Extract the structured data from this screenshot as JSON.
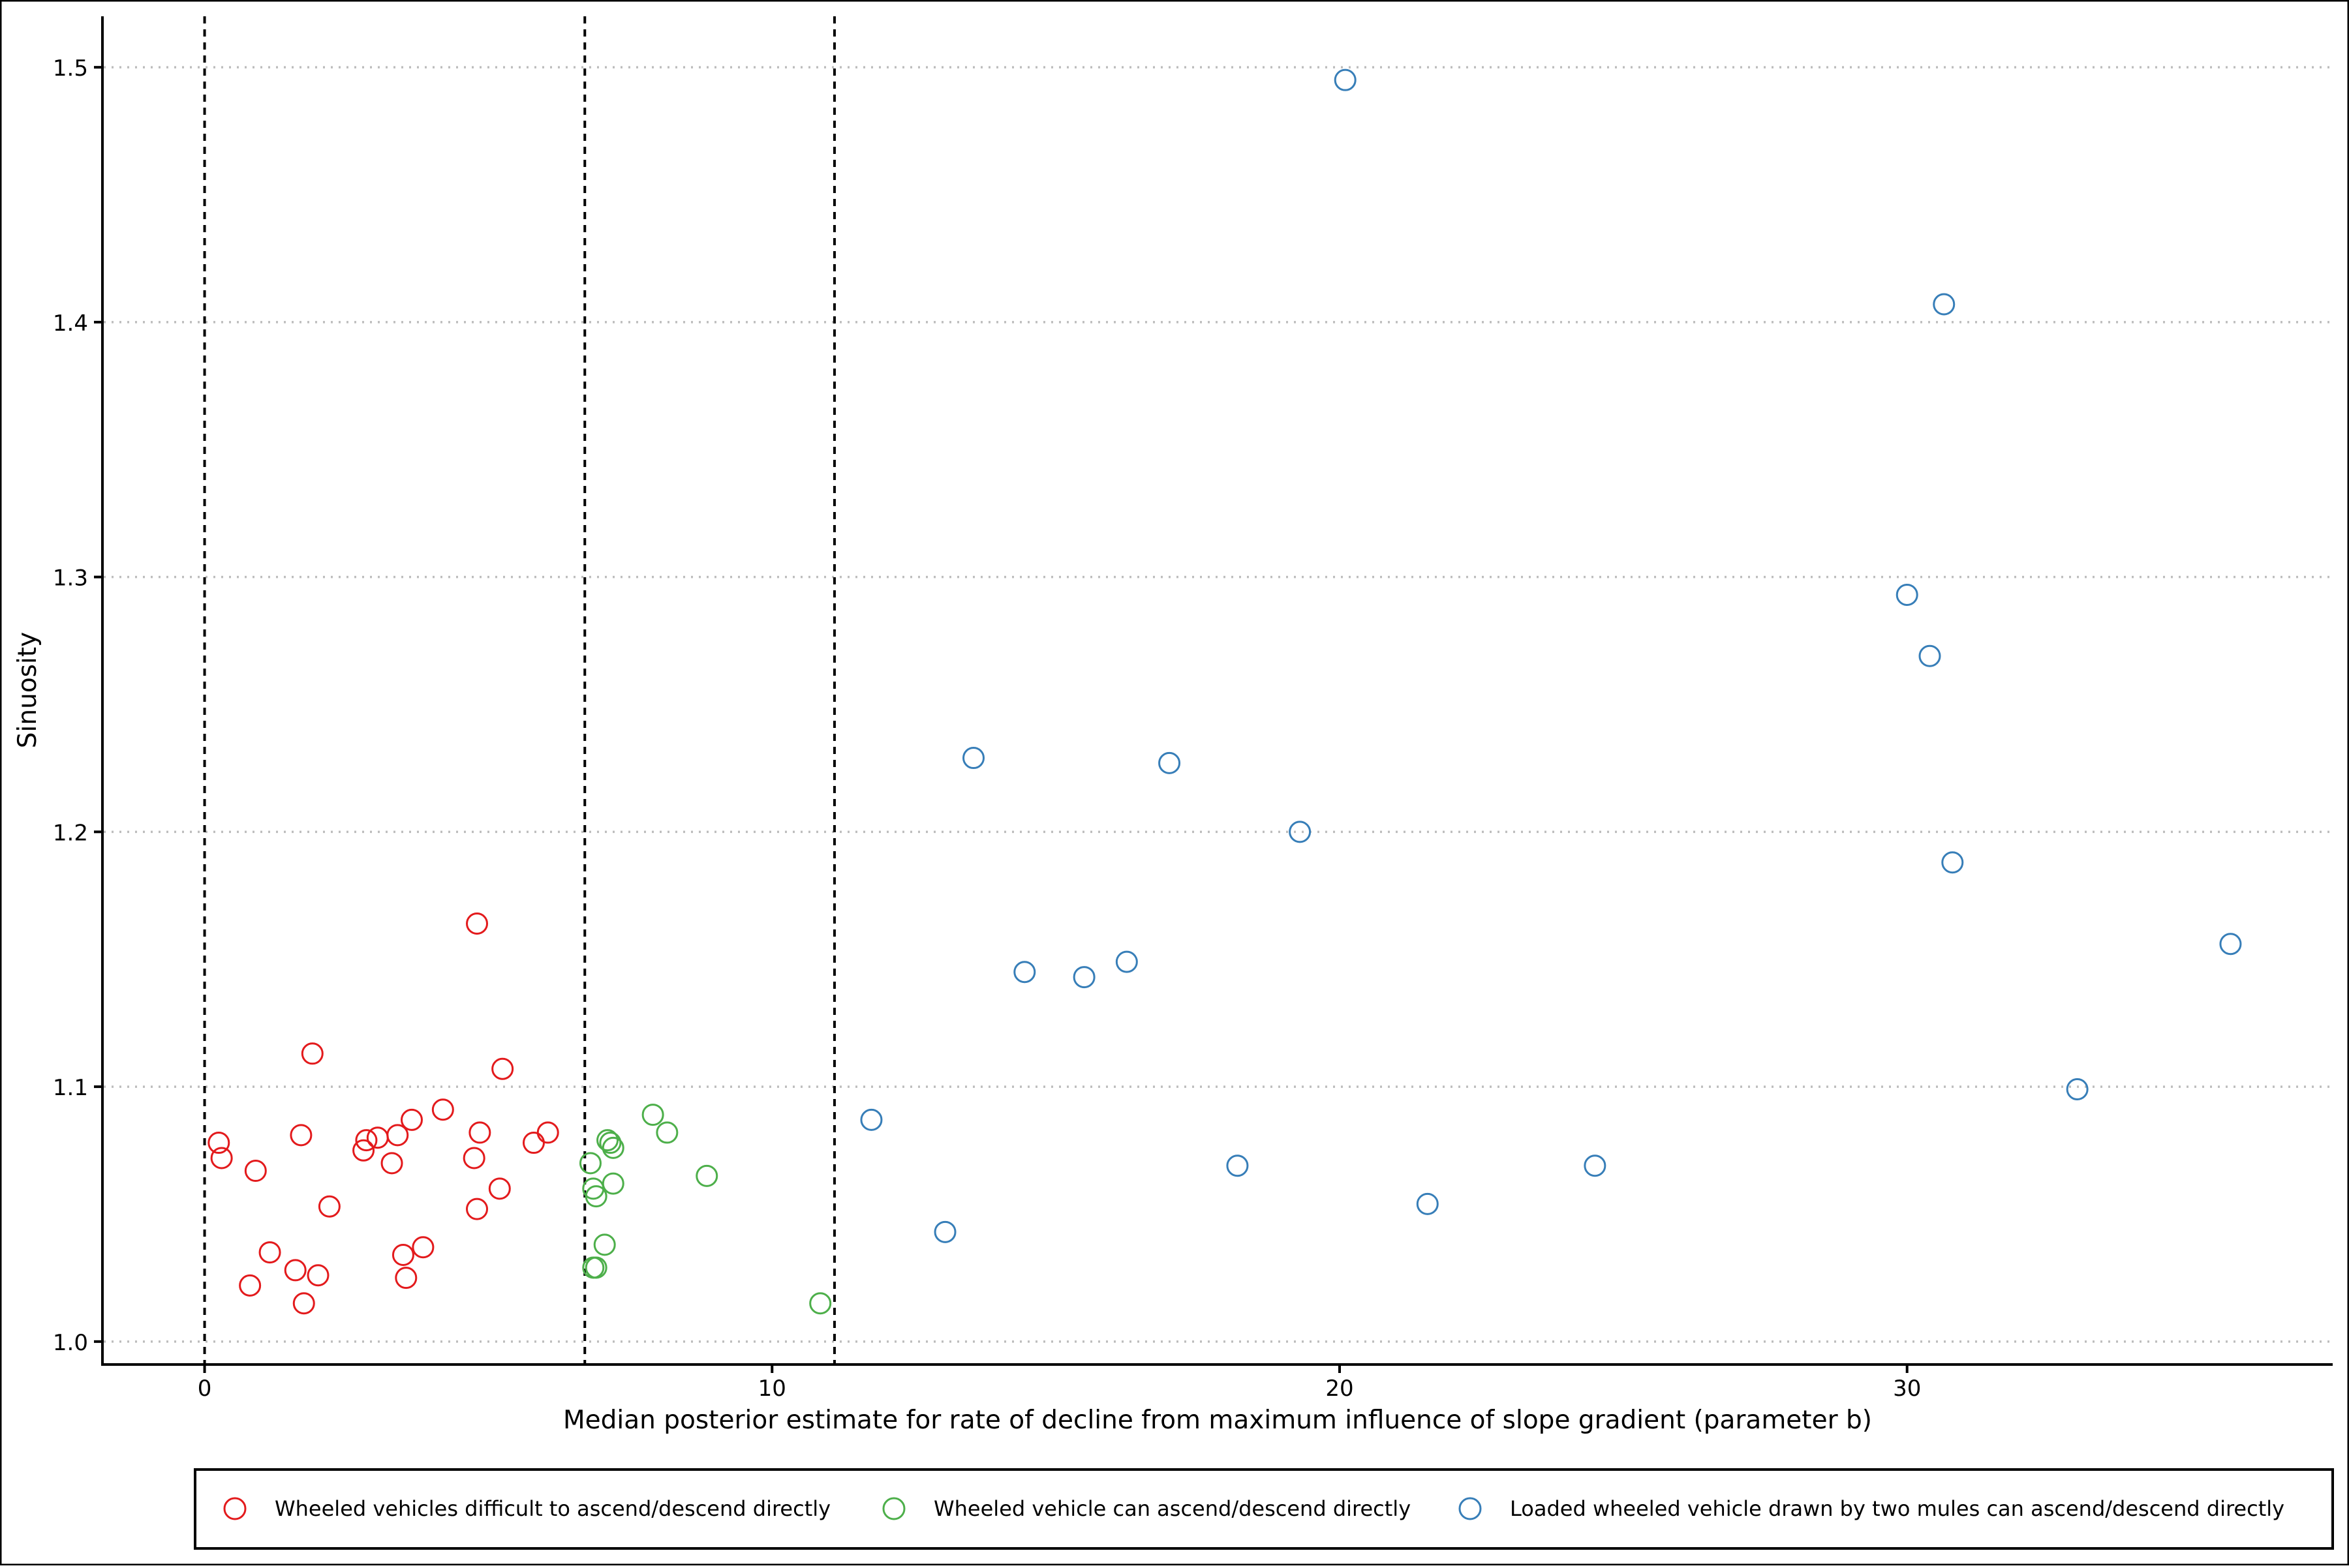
{
  "chart_data": {
    "type": "scatter",
    "title": "",
    "xlabel": "Median posterior estimate for rate of decline from maximum influence of slope gradient (parameter b)",
    "ylabel": "Sinuosity",
    "xlim": [
      -1.8,
      37.5
    ],
    "ylim": [
      0.991,
      1.52
    ],
    "x_ticks": [
      0,
      10,
      20,
      30
    ],
    "y_ticks": [
      1.0,
      1.1,
      1.2,
      1.3,
      1.4,
      1.5
    ],
    "x_tick_labels": [
      "0",
      "10",
      "20",
      "30"
    ],
    "y_tick_labels": [
      "1.0",
      "1.1",
      "1.2",
      "1.3",
      "1.4",
      "1.5"
    ],
    "grid": "horizontal dotted",
    "vertical_reference_lines": [
      0,
      6.7,
      11.1
    ],
    "legend_position": "bottom",
    "series": [
      {
        "name": "Wheeled vehicles difficult to ascend/descend directly",
        "color": "#e31a1c",
        "points": [
          [
            0.25,
            1.078
          ],
          [
            0.3,
            1.072
          ],
          [
            0.9,
            1.067
          ],
          [
            0.8,
            1.022
          ],
          [
            1.15,
            1.035
          ],
          [
            1.6,
            1.028
          ],
          [
            1.7,
            1.081
          ],
          [
            1.75,
            1.015
          ],
          [
            1.9,
            1.113
          ],
          [
            2.0,
            1.026
          ],
          [
            2.2,
            1.053
          ],
          [
            2.8,
            1.075
          ],
          [
            2.85,
            1.079
          ],
          [
            3.05,
            1.08
          ],
          [
            3.3,
            1.07
          ],
          [
            3.4,
            1.081
          ],
          [
            3.5,
            1.034
          ],
          [
            3.55,
            1.025
          ],
          [
            3.65,
            1.087
          ],
          [
            3.85,
            1.037
          ],
          [
            4.2,
            1.091
          ],
          [
            4.75,
            1.072
          ],
          [
            4.8,
            1.164
          ],
          [
            4.8,
            1.052
          ],
          [
            4.85,
            1.082
          ],
          [
            5.2,
            1.06
          ],
          [
            5.25,
            1.107
          ],
          [
            5.8,
            1.078
          ],
          [
            6.05,
            1.082
          ]
        ]
      },
      {
        "name": "Wheeled vehicle can ascend/descend directly",
        "color": "#4daf4a",
        "points": [
          [
            6.8,
            1.07
          ],
          [
            6.85,
            1.06
          ],
          [
            6.9,
            1.057
          ],
          [
            6.85,
            1.029
          ],
          [
            6.9,
            1.029
          ],
          [
            7.05,
            1.038
          ],
          [
            7.1,
            1.079
          ],
          [
            7.15,
            1.078
          ],
          [
            7.2,
            1.076
          ],
          [
            7.2,
            1.062
          ],
          [
            7.9,
            1.089
          ],
          [
            8.15,
            1.082
          ],
          [
            8.85,
            1.065
          ],
          [
            10.85,
            1.015
          ]
        ]
      },
      {
        "name": "Loaded wheeled vehicle drawn by two mules can ascend/descend directly",
        "color": "#377eb8",
        "points": [
          [
            11.75,
            1.087
          ],
          [
            13.05,
            1.043
          ],
          [
            13.55,
            1.229
          ],
          [
            14.45,
            1.145
          ],
          [
            15.5,
            1.143
          ],
          [
            16.25,
            1.149
          ],
          [
            17.0,
            1.227
          ],
          [
            18.2,
            1.069
          ],
          [
            19.3,
            1.2
          ],
          [
            20.1,
            1.495
          ],
          [
            21.55,
            1.054
          ],
          [
            24.5,
            1.069
          ],
          [
            30.0,
            1.293
          ],
          [
            30.4,
            1.269
          ],
          [
            30.65,
            1.407
          ],
          [
            30.8,
            1.188
          ],
          [
            33.0,
            1.099
          ],
          [
            35.7,
            1.156
          ]
        ]
      }
    ]
  }
}
